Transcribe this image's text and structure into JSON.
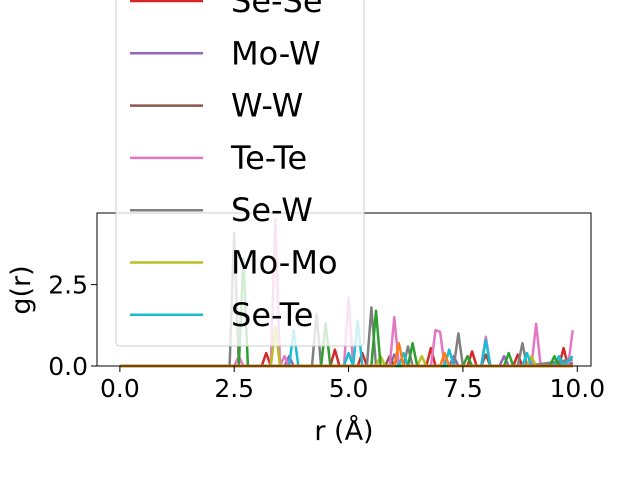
{
  "chart_data": {
    "type": "line",
    "xlabel": "r (Å)",
    "ylabel": "g(r)",
    "xlim": [
      -0.5,
      10.3
    ],
    "ylim": [
      0,
      4.7
    ],
    "xticks": [
      0.0,
      2.5,
      5.0,
      7.5,
      10.0
    ],
    "xtick_labels": [
      "0.0",
      "2.5",
      "5.0",
      "7.5",
      "10.0"
    ],
    "yticks": [
      0.0,
      2.5
    ],
    "ytick_labels": [
      "0.0",
      "2.5"
    ],
    "grid": false,
    "legend_position": "upper-left",
    "series": [
      {
        "name": "Se-Se",
        "color": "#d62728",
        "points": [
          [
            0.0,
            0.0
          ],
          [
            3.1,
            0.0
          ],
          [
            3.2,
            0.4
          ],
          [
            3.3,
            0.0
          ],
          [
            4.6,
            0.0
          ],
          [
            4.7,
            0.5
          ],
          [
            4.8,
            0.0
          ],
          [
            5.2,
            0.0
          ],
          [
            5.3,
            0.4
          ],
          [
            5.4,
            0.0
          ],
          [
            6.7,
            0.0
          ],
          [
            6.8,
            0.55
          ],
          [
            6.9,
            0.0
          ],
          [
            7.6,
            0.0
          ],
          [
            7.7,
            0.45
          ],
          [
            7.8,
            0.0
          ],
          [
            8.6,
            0.0
          ],
          [
            8.7,
            0.35
          ],
          [
            8.8,
            0.0
          ],
          [
            9.6,
            0.0
          ],
          [
            9.7,
            0.55
          ],
          [
            9.8,
            0.0
          ],
          [
            9.9,
            0.1
          ]
        ]
      },
      {
        "name": "Mo-W",
        "color": "#9467bd",
        "points": [
          [
            0.0,
            0.0
          ],
          [
            3.6,
            0.0
          ],
          [
            3.7,
            0.3
          ],
          [
            3.8,
            0.0
          ],
          [
            5.9,
            0.0
          ],
          [
            6.0,
            0.35
          ],
          [
            6.1,
            0.0
          ],
          [
            7.2,
            0.0
          ],
          [
            7.3,
            0.3
          ],
          [
            7.4,
            0.0
          ],
          [
            8.3,
            0.0
          ],
          [
            8.4,
            0.3
          ],
          [
            8.5,
            0.0
          ],
          [
            9.9,
            0.1
          ]
        ]
      },
      {
        "name": "W-W",
        "color": "#8c564b",
        "points": [
          [
            0.0,
            0.0
          ],
          [
            5.8,
            0.0
          ],
          [
            5.9,
            0.3
          ],
          [
            6.0,
            0.0
          ],
          [
            7.9,
            0.0
          ],
          [
            8.0,
            0.35
          ],
          [
            8.1,
            0.0
          ],
          [
            9.9,
            0.0
          ]
        ]
      },
      {
        "name": "Te-Te",
        "color": "#e377c2",
        "points": [
          [
            0.0,
            0.0
          ],
          [
            2.5,
            0.0
          ],
          [
            2.6,
            0.3
          ],
          [
            2.7,
            0.0
          ],
          [
            3.3,
            0.0
          ],
          [
            3.4,
            4.5
          ],
          [
            3.5,
            0.0
          ],
          [
            3.6,
            0.3
          ],
          [
            3.7,
            0.0
          ],
          [
            4.9,
            0.0
          ],
          [
            5.0,
            2.1
          ],
          [
            5.1,
            0.0
          ],
          [
            5.9,
            0.0
          ],
          [
            6.0,
            1.5
          ],
          [
            6.1,
            0.0
          ],
          [
            6.8,
            0.0
          ],
          [
            6.9,
            1.1
          ],
          [
            7.0,
            1.05
          ],
          [
            7.1,
            0.0
          ],
          [
            7.9,
            0.0
          ],
          [
            8.0,
            0.9
          ],
          [
            8.1,
            0.0
          ],
          [
            9.0,
            0.0
          ],
          [
            9.1,
            1.3
          ],
          [
            9.2,
            0.0
          ],
          [
            9.8,
            0.0
          ],
          [
            9.9,
            1.1
          ]
        ]
      },
      {
        "name": "Se-W",
        "color": "#7f7f7f",
        "points": [
          [
            0.0,
            0.0
          ],
          [
            2.4,
            0.0
          ],
          [
            2.5,
            4.1
          ],
          [
            2.6,
            0.0
          ],
          [
            4.2,
            0.0
          ],
          [
            4.3,
            1.6
          ],
          [
            4.4,
            0.0
          ],
          [
            5.4,
            0.0
          ],
          [
            5.5,
            1.8
          ],
          [
            5.6,
            0.0
          ],
          [
            6.2,
            0.0
          ],
          [
            6.3,
            0.6
          ],
          [
            6.4,
            0.0
          ],
          [
            7.3,
            0.0
          ],
          [
            7.4,
            1.0
          ],
          [
            7.5,
            0.0
          ],
          [
            8.7,
            0.0
          ],
          [
            8.8,
            0.7
          ],
          [
            8.9,
            0.0
          ],
          [
            9.9,
            0.2
          ]
        ]
      },
      {
        "name": "Mo-Mo",
        "color": "#bcbd22",
        "points": [
          [
            0.0,
            0.0
          ],
          [
            3.3,
            0.0
          ],
          [
            3.4,
            1.2
          ],
          [
            3.5,
            0.0
          ],
          [
            5.6,
            0.0
          ],
          [
            5.7,
            0.3
          ],
          [
            5.8,
            0.0
          ],
          [
            6.5,
            0.0
          ],
          [
            6.6,
            0.3
          ],
          [
            6.7,
            0.0
          ],
          [
            8.9,
            0.0
          ],
          [
            9.0,
            0.3
          ],
          [
            9.1,
            0.0
          ],
          [
            9.9,
            0.0
          ]
        ]
      },
      {
        "name": "Se-Te",
        "color": "#17becf",
        "points": [
          [
            0.0,
            0.0
          ],
          [
            3.7,
            0.0
          ],
          [
            3.8,
            1.1
          ],
          [
            3.9,
            0.0
          ],
          [
            4.9,
            0.0
          ],
          [
            5.0,
            0.4
          ],
          [
            5.1,
            0.0
          ],
          [
            5.2,
            1.4
          ],
          [
            5.3,
            0.0
          ],
          [
            6.1,
            0.0
          ],
          [
            6.2,
            0.4
          ],
          [
            6.3,
            0.0
          ],
          [
            7.1,
            0.0
          ],
          [
            7.2,
            0.5
          ],
          [
            7.3,
            0.0
          ],
          [
            7.9,
            0.0
          ],
          [
            8.0,
            0.8
          ],
          [
            8.1,
            0.0
          ],
          [
            8.8,
            0.0
          ],
          [
            8.9,
            0.4
          ],
          [
            9.0,
            0.0
          ],
          [
            9.5,
            0.0
          ],
          [
            9.6,
            0.3
          ],
          [
            9.7,
            0.0
          ],
          [
            9.9,
            0.3
          ]
        ]
      },
      {
        "name": "",
        "color": "#2ca02c",
        "points": [
          [
            0.0,
            0.0
          ],
          [
            2.6,
            0.0
          ],
          [
            2.7,
            3.3
          ],
          [
            2.8,
            0.0
          ],
          [
            4.4,
            0.0
          ],
          [
            4.5,
            1.3
          ],
          [
            4.6,
            0.0
          ],
          [
            5.5,
            0.0
          ],
          [
            5.6,
            1.7
          ],
          [
            5.7,
            0.0
          ],
          [
            6.3,
            0.0
          ],
          [
            6.4,
            0.7
          ],
          [
            6.5,
            0.0
          ],
          [
            7.5,
            0.0
          ],
          [
            7.6,
            0.3
          ],
          [
            7.7,
            0.0
          ],
          [
            8.4,
            0.0
          ],
          [
            8.5,
            0.4
          ],
          [
            8.6,
            0.0
          ],
          [
            9.4,
            0.0
          ],
          [
            9.5,
            0.3
          ],
          [
            9.6,
            0.0
          ],
          [
            9.9,
            0.0
          ]
        ]
      },
      {
        "name": "",
        "color": "#ff7f0e",
        "points": [
          [
            0.0,
            0.0
          ],
          [
            6.0,
            0.0
          ],
          [
            6.1,
            0.7
          ],
          [
            6.2,
            0.0
          ],
          [
            7.0,
            0.0
          ],
          [
            7.1,
            0.4
          ],
          [
            7.2,
            0.0
          ],
          [
            9.9,
            0.0
          ]
        ]
      }
    ],
    "legend_visible": [
      "Se-Se",
      "Mo-W",
      "W-W",
      "Te-Te",
      "Se-W",
      "Mo-Mo",
      "Se-Te"
    ]
  }
}
